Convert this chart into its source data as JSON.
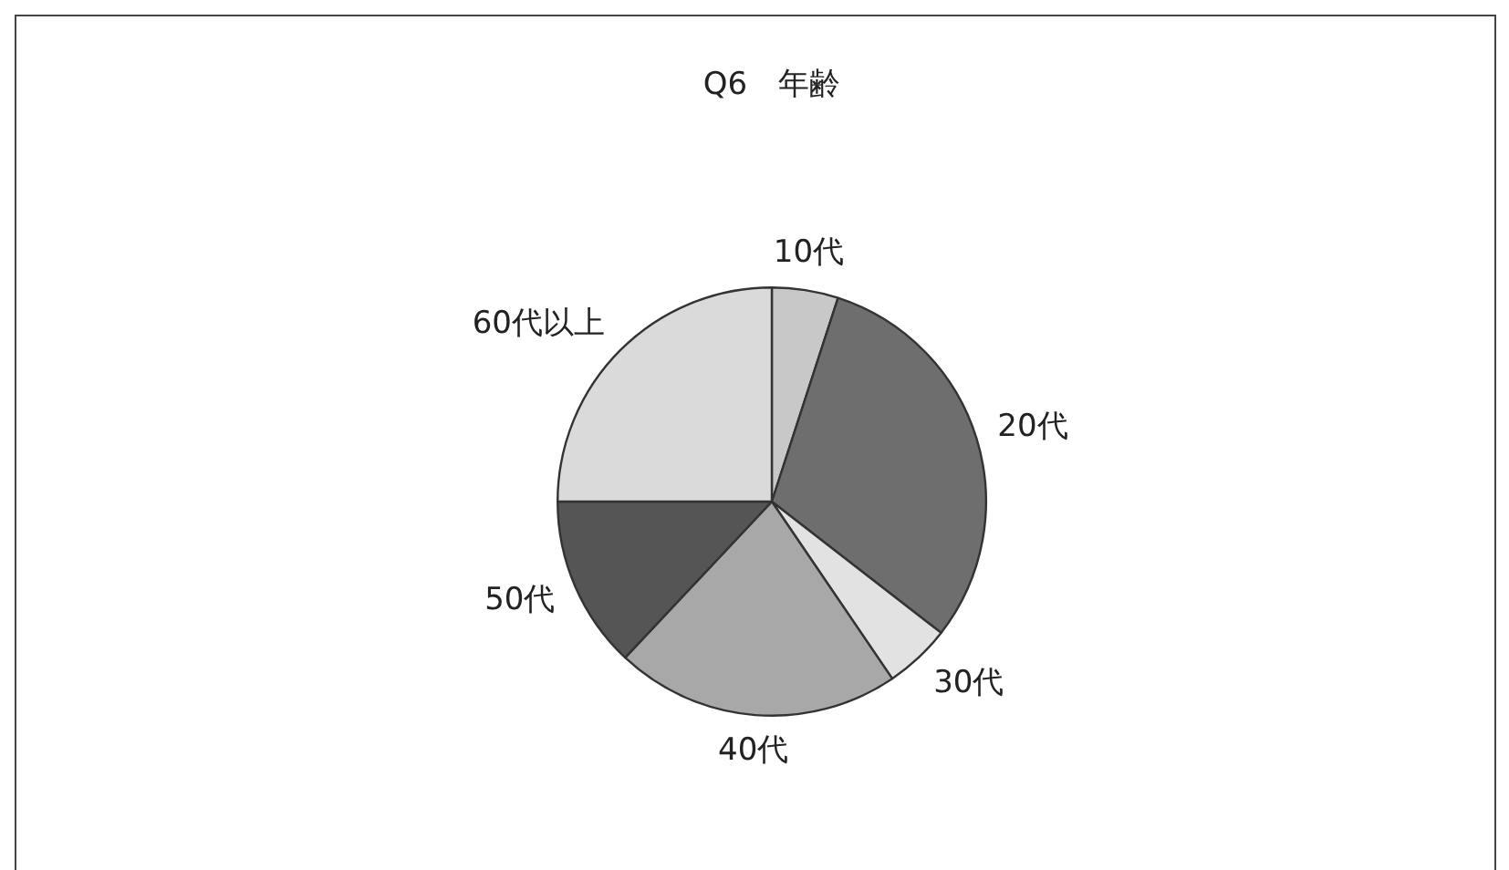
{
  "chart_data": {
    "type": "pie",
    "title": "Q6　年齢",
    "categories": [
      "10代",
      "20代",
      "30代",
      "40代",
      "50代",
      "60代以上"
    ],
    "values": [
      5,
      30.5,
      5,
      21.5,
      13,
      25
    ],
    "colors": [
      "#c8c8c8",
      "#6e6e6e",
      "#e2e2e2",
      "#a8a8a8",
      "#555555",
      "#dadada"
    ],
    "legend": false
  }
}
